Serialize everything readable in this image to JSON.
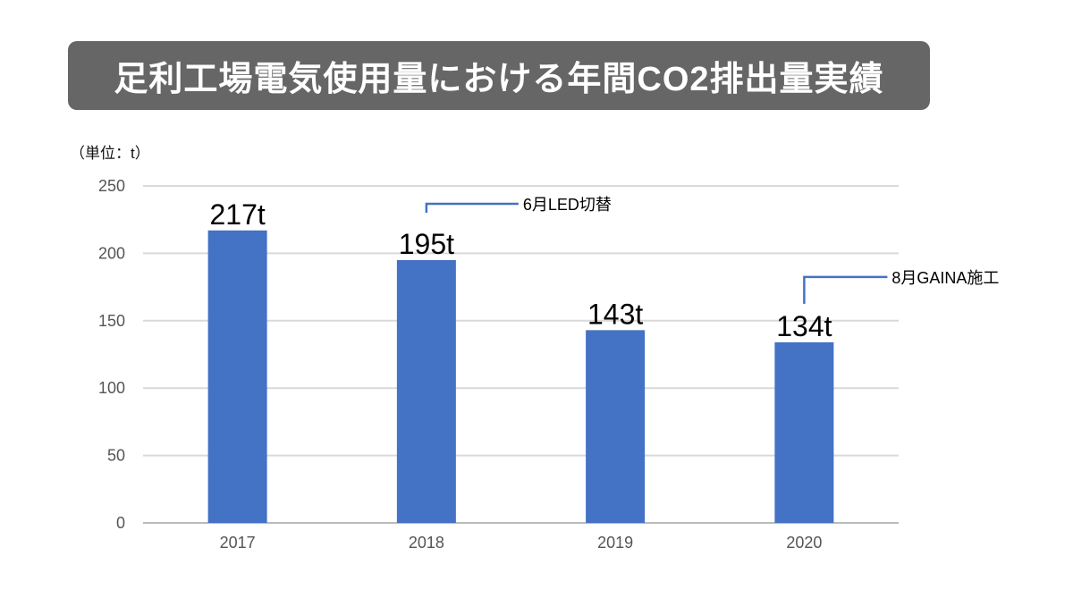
{
  "chart_data": {
    "type": "bar",
    "title": "足利工場電気使用量における年間CO2排出量実績",
    "unit_label": "（単位：t）",
    "categories": [
      "2017",
      "2018",
      "2019",
      "2020"
    ],
    "values": [
      217,
      195,
      143,
      134
    ],
    "data_labels": [
      "217t",
      "195t",
      "143t",
      "134t"
    ],
    "ylim": [
      0,
      250
    ],
    "yticks": [
      0,
      50,
      100,
      150,
      200,
      250
    ],
    "grid": true,
    "bar_color": "#4472C4",
    "annotations": [
      {
        "category": "2018",
        "text": "6月LED切替"
      },
      {
        "category": "2020",
        "text": "8月GAINA施工"
      }
    ]
  }
}
